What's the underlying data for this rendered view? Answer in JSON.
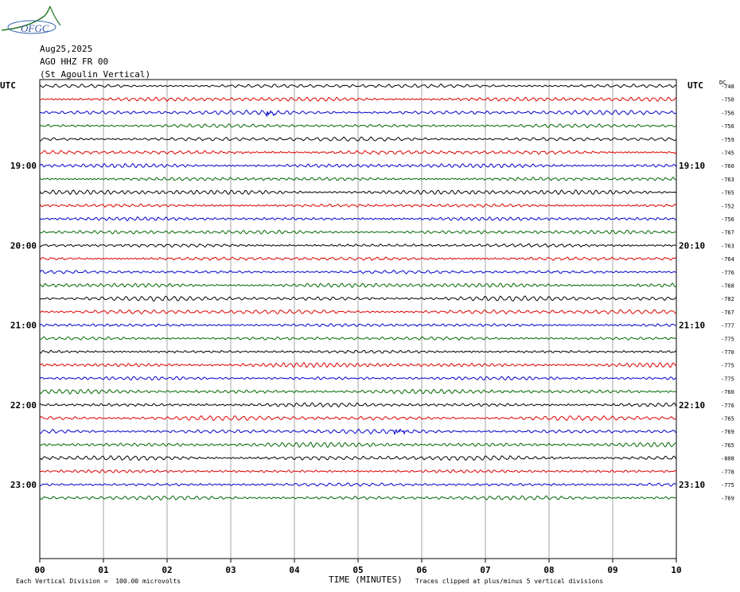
{
  "header": {
    "logo_text": "OFGC",
    "date": "Aug25,2025",
    "station": "AGO HHZ FR 00",
    "station_name": "(St Agoulin Vertical)",
    "utc_left": "UTC",
    "utc_right": "UTC",
    "dc_label": "DC"
  },
  "footer": {
    "scale_note": "Each Vertical Division =  100.00 microvolts",
    "xlabel": "TIME (MINUTES)",
    "clip_note": "Traces clipped at plus/minus 5 vertical divisions"
  },
  "colors": {
    "black": "#000000",
    "red": "#dd0000",
    "blue": "#0000cc",
    "green": "#006600",
    "grid": "#808080"
  },
  "chart_data": {
    "type": "line",
    "title": "AGO HHZ FR 00 (St Agoulin Vertical)",
    "xlabel": "TIME (MINUTES)",
    "xlim": [
      0,
      10
    ],
    "x_ticks": [
      "00",
      "01",
      "02",
      "03",
      "04",
      "05",
      "06",
      "07",
      "08",
      "09",
      "10"
    ],
    "left_time_labels": [
      {
        "row": 6,
        "label": "19:00"
      },
      {
        "row": 12,
        "label": "20:00"
      },
      {
        "row": 18,
        "label": "21:00"
      },
      {
        "row": 24,
        "label": "22:00"
      },
      {
        "row": 30,
        "label": "23:00"
      }
    ],
    "right_time_labels": [
      {
        "row": 6,
        "label": "19:10"
      },
      {
        "row": 12,
        "label": "20:10"
      },
      {
        "row": 18,
        "label": "21:10"
      },
      {
        "row": 24,
        "label": "22:10"
      },
      {
        "row": 30,
        "label": "23:10"
      }
    ],
    "trace_colors": [
      "black",
      "red",
      "blue",
      "green"
    ],
    "dc_offsets": [
      "-748",
      "-750",
      "-756",
      "-756",
      "-759",
      "-745",
      "-760",
      "-763",
      "-765",
      "-752",
      "-756",
      "-767",
      "-763",
      "-764",
      "-776",
      "-768",
      "-782",
      "-767",
      "-777",
      "-775",
      "-770",
      "-775",
      "-775",
      "-760",
      "-776",
      "-765",
      "-769",
      "-765",
      "-808",
      "-778",
      "-775",
      "-769"
    ],
    "event_bursts": [
      {
        "row": 2,
        "minute": 3.6,
        "amplitude": "small"
      },
      {
        "row": 26,
        "minute": 5.6,
        "amplitude": "large"
      }
    ],
    "grid": true,
    "scale_microvolts_per_division": 100.0
  }
}
